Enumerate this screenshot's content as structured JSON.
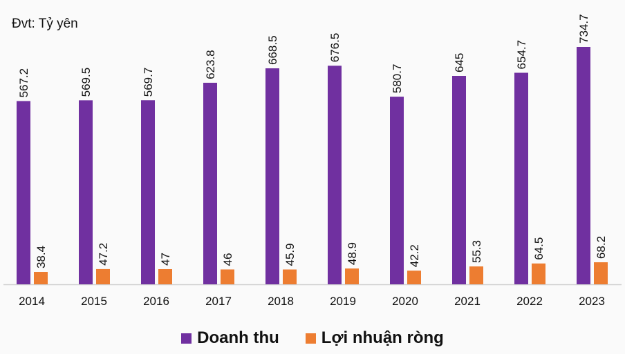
{
  "chart_data": {
    "type": "bar",
    "unit_label": "Đvt: Tỷ yên",
    "categories": [
      "2014",
      "2015",
      "2016",
      "2017",
      "2018",
      "2019",
      "2020",
      "2021",
      "2022",
      "2023"
    ],
    "series": [
      {
        "name": "Doanh thu",
        "color": "#7030a0",
        "values": [
          567.2,
          569.5,
          569.7,
          623.8,
          668.5,
          676.5,
          580.7,
          645,
          654.7,
          734.7
        ]
      },
      {
        "name": "Lợi nhuận ròng",
        "color": "#ed7d31",
        "values": [
          38.4,
          47.2,
          47,
          46,
          45.9,
          48.9,
          42.2,
          55.3,
          64.5,
          68.2
        ]
      }
    ],
    "ylim": [
      0,
      734.7
    ],
    "grid": false,
    "legend": "bottom"
  }
}
